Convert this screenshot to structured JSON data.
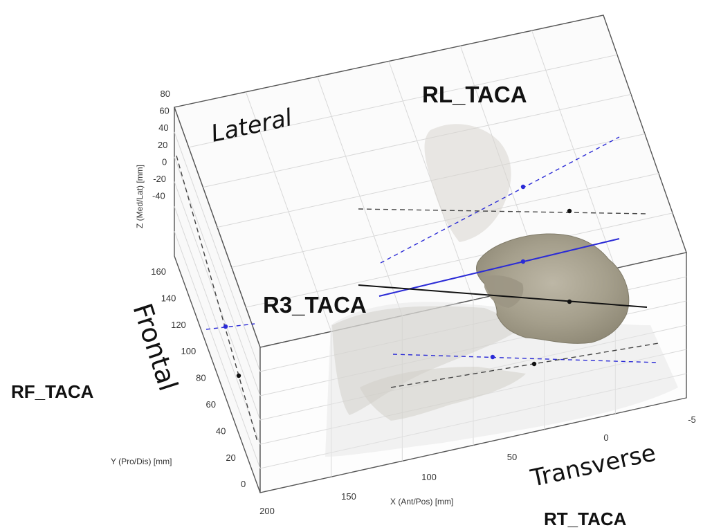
{
  "chart_data": {
    "type": "3d-line",
    "colors": {
      "tibial_axis": "#2b2bd6",
      "talocalcaneal_axis": "#222222",
      "box_edge": "#333333",
      "grid": "#d8d8d8"
    },
    "axes": {
      "z": {
        "label": "Z (Med/Lat) [mm]",
        "ticks": [
          "80",
          "60",
          "40",
          "20",
          "0",
          "-20",
          "-40"
        ]
      },
      "y": {
        "label": "Y (Pro/Dis) [mm]",
        "ticks": [
          "160",
          "140",
          "120",
          "100",
          "80",
          "60",
          "40",
          "20",
          "0"
        ]
      },
      "x": {
        "label": "X (Ant/Pos) [mm]",
        "ticks": [
          "200",
          "150",
          "100",
          "50",
          "0",
          "-5"
        ]
      }
    },
    "planes": {
      "lateral": "Lateral",
      "frontal": "Frontal",
      "transverse": "Transverse"
    },
    "annotations": {
      "rl": "RL_TACA",
      "r3": "R3_TACA",
      "rf": "RF_TACA",
      "rt": "RT_TACA"
    }
  }
}
